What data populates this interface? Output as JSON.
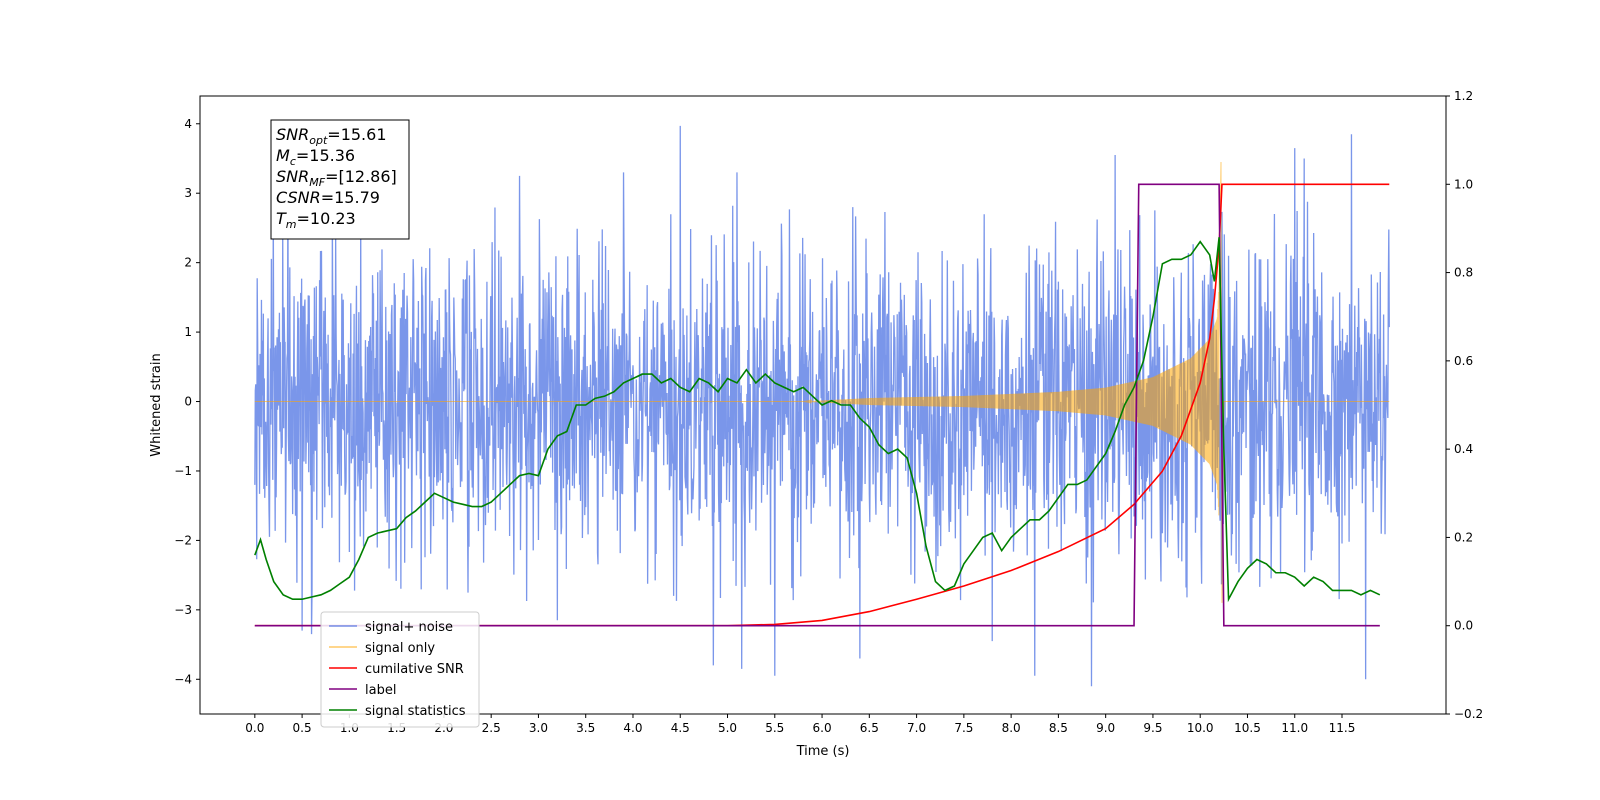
{
  "chart_data": {
    "type": "line",
    "xlabel": "Time (s)",
    "ylabel_left": "Whitened strain",
    "ylabel_right": "",
    "xlim": [
      -0.58,
      12.6
    ],
    "ylim_left": [
      -4.5,
      4.4
    ],
    "ylim_right": [
      -0.2,
      1.2
    ],
    "x_ticks": [
      0.0,
      0.5,
      1.0,
      1.5,
      2.0,
      2.5,
      3.0,
      3.5,
      4.0,
      4.5,
      5.0,
      5.5,
      6.0,
      6.5,
      7.0,
      7.5,
      8.0,
      8.5,
      9.0,
      9.5,
      10.0,
      10.5,
      11.0,
      11.5
    ],
    "x_tick_labels": [
      "0.0",
      "0.5",
      "1.0",
      "1.5",
      "2.0",
      "2.5",
      "3.0",
      "3.5",
      "4.0",
      "4.5",
      "5.0",
      "5.5",
      "6.0",
      "6.5",
      "7.0",
      "7.5",
      "8.0",
      "8.5",
      "9.0",
      "9.5",
      "10.0",
      "10.5",
      "11.0",
      "11.5"
    ],
    "y_ticks_left": [
      4,
      3,
      2,
      1,
      0,
      -1,
      -2,
      -3,
      -4
    ],
    "y_tick_labels_left": [
      "4",
      "3",
      "2",
      "1",
      "0",
      "−1",
      "−2",
      "−3",
      "−4"
    ],
    "y_ticks_right": [
      1.2,
      1.0,
      0.8,
      0.6,
      0.4,
      0.2,
      0.0,
      -0.2
    ],
    "y_tick_labels_right": [
      "1.2",
      "1.0",
      "0.8",
      "0.6",
      "0.4",
      "0.2",
      "0.0",
      "−0.2"
    ],
    "grid": false,
    "legend_position": "lower-left",
    "annotation": {
      "lines": [
        {
          "main": "SNR",
          "sub": "opt",
          "value": "=15.61"
        },
        {
          "main": "M",
          "sub": "c",
          "value": "=15.36"
        },
        {
          "main": "SNR",
          "sub": "MF",
          "value": "=[12.86]"
        },
        {
          "main": "CSNR",
          "sub": "",
          "value": "=15.79"
        },
        {
          "main": "T",
          "sub": "m",
          "value": "=10.23"
        }
      ]
    },
    "series": [
      {
        "name": "signal+ noise",
        "color": "#4169e1",
        "axis": "left",
        "style": "noise",
        "x_range": [
          0.0,
          12.0
        ],
        "envelope_typical": [
          -2.0,
          2.0
        ],
        "peaks": [
          {
            "x": 0.35,
            "y": 3.1
          },
          {
            "x": 0.5,
            "y": -3.3
          },
          {
            "x": 0.6,
            "y": -3.35
          },
          {
            "x": 2.8,
            "y": 3.25
          },
          {
            "x": 3.2,
            "y": -3.15
          },
          {
            "x": 3.9,
            "y": 3.3
          },
          {
            "x": 4.5,
            "y": 3.97
          },
          {
            "x": 4.85,
            "y": -3.8
          },
          {
            "x": 5.1,
            "y": 3.3
          },
          {
            "x": 5.15,
            "y": -3.85
          },
          {
            "x": 5.5,
            "y": -3.95
          },
          {
            "x": 6.4,
            "y": -3.7
          },
          {
            "x": 7.8,
            "y": -3.45
          },
          {
            "x": 8.25,
            "y": -3.95
          },
          {
            "x": 8.85,
            "y": -4.1
          },
          {
            "x": 9.1,
            "y": 3.55
          },
          {
            "x": 10.3,
            "y": 2.1
          },
          {
            "x": 11.0,
            "y": 3.65
          },
          {
            "x": 11.1,
            "y": 3.5
          },
          {
            "x": 11.6,
            "y": 3.85
          },
          {
            "x": 11.75,
            "y": -4.0
          }
        ]
      },
      {
        "name": "signal only",
        "color": "#ffa500",
        "axis": "left",
        "style": "chirp",
        "chirp": {
          "start_x": 5.8,
          "merge_x": 10.2,
          "end_x": 10.23,
          "envelope_points": [
            [
              5.8,
              0.0
            ],
            [
              6.5,
              0.05
            ],
            [
              7.5,
              0.08
            ],
            [
              8.5,
              0.14
            ],
            [
              9.0,
              0.2
            ],
            [
              9.5,
              0.35
            ],
            [
              9.9,
              0.62
            ],
            [
              10.1,
              0.9
            ],
            [
              10.18,
              1.2
            ],
            [
              10.2,
              1.7
            ]
          ],
          "spike_peak": 3.45,
          "spike_min": -2.9
        }
      },
      {
        "name": "cumilative SNR",
        "color": "#ff0000",
        "axis": "right",
        "style": "line",
        "x": [
          0.0,
          5.0,
          5.5,
          6.0,
          6.5,
          7.0,
          7.5,
          8.0,
          8.5,
          9.0,
          9.3,
          9.6,
          9.8,
          10.0,
          10.1,
          10.15,
          10.2,
          10.23,
          12.0
        ],
        "y": [
          0.0,
          0.0,
          0.003,
          0.012,
          0.032,
          0.06,
          0.09,
          0.125,
          0.168,
          0.22,
          0.275,
          0.35,
          0.43,
          0.55,
          0.65,
          0.74,
          0.86,
          1.0,
          1.0
        ]
      },
      {
        "name": "label",
        "color": "#800080",
        "axis": "right",
        "style": "line",
        "x": [
          0.0,
          9.3,
          9.35,
          10.2,
          10.25,
          11.9
        ],
        "y": [
          0.0,
          0.0,
          1.0,
          1.0,
          0.0,
          0.0
        ]
      },
      {
        "name": "signal statistics",
        "color": "#008000",
        "axis": "right",
        "style": "line",
        "x": [
          0.0,
          0.06,
          0.12,
          0.2,
          0.3,
          0.4,
          0.5,
          0.6,
          0.7,
          0.8,
          0.9,
          1.0,
          1.1,
          1.2,
          1.3,
          1.4,
          1.5,
          1.6,
          1.7,
          1.8,
          1.9,
          2.0,
          2.1,
          2.2,
          2.3,
          2.4,
          2.5,
          2.6,
          2.7,
          2.8,
          2.9,
          3.0,
          3.1,
          3.2,
          3.3,
          3.4,
          3.5,
          3.6,
          3.7,
          3.8,
          3.9,
          4.0,
          4.1,
          4.2,
          4.3,
          4.4,
          4.5,
          4.6,
          4.7,
          4.8,
          4.9,
          5.0,
          5.1,
          5.2,
          5.3,
          5.4,
          5.5,
          5.6,
          5.7,
          5.8,
          5.9,
          6.0,
          6.1,
          6.2,
          6.3,
          6.4,
          6.5,
          6.6,
          6.7,
          6.8,
          6.9,
          7.0,
          7.1,
          7.2,
          7.3,
          7.4,
          7.5,
          7.6,
          7.7,
          7.8,
          7.9,
          8.0,
          8.1,
          8.2,
          8.3,
          8.4,
          8.5,
          8.6,
          8.7,
          8.8,
          8.9,
          9.0,
          9.1,
          9.2,
          9.3,
          9.4,
          9.5,
          9.6,
          9.7,
          9.8,
          9.9,
          10.0,
          10.1,
          10.15,
          10.2,
          10.25,
          10.3,
          10.4,
          10.5,
          10.6,
          10.7,
          10.8,
          10.9,
          11.0,
          11.1,
          11.2,
          11.3,
          11.4,
          11.5,
          11.6,
          11.7,
          11.8,
          11.9
        ],
        "y": [
          0.16,
          0.195,
          0.15,
          0.1,
          0.07,
          0.06,
          0.06,
          0.065,
          0.07,
          0.08,
          0.095,
          0.11,
          0.15,
          0.2,
          0.21,
          0.215,
          0.22,
          0.245,
          0.26,
          0.28,
          0.3,
          0.29,
          0.28,
          0.275,
          0.27,
          0.27,
          0.28,
          0.3,
          0.32,
          0.34,
          0.345,
          0.34,
          0.4,
          0.43,
          0.44,
          0.5,
          0.5,
          0.515,
          0.52,
          0.53,
          0.55,
          0.56,
          0.57,
          0.57,
          0.55,
          0.56,
          0.54,
          0.53,
          0.56,
          0.55,
          0.53,
          0.56,
          0.55,
          0.58,
          0.55,
          0.57,
          0.55,
          0.54,
          0.53,
          0.54,
          0.52,
          0.5,
          0.51,
          0.5,
          0.5,
          0.47,
          0.45,
          0.41,
          0.39,
          0.4,
          0.38,
          0.3,
          0.18,
          0.1,
          0.08,
          0.09,
          0.14,
          0.17,
          0.2,
          0.21,
          0.17,
          0.2,
          0.22,
          0.24,
          0.24,
          0.26,
          0.29,
          0.32,
          0.32,
          0.33,
          0.36,
          0.39,
          0.44,
          0.5,
          0.54,
          0.6,
          0.7,
          0.82,
          0.83,
          0.83,
          0.84,
          0.87,
          0.84,
          0.78,
          0.88,
          0.4,
          0.06,
          0.1,
          0.13,
          0.15,
          0.14,
          0.12,
          0.12,
          0.11,
          0.09,
          0.11,
          0.1,
          0.08,
          0.08,
          0.08,
          0.07,
          0.08,
          0.07
        ]
      }
    ]
  }
}
